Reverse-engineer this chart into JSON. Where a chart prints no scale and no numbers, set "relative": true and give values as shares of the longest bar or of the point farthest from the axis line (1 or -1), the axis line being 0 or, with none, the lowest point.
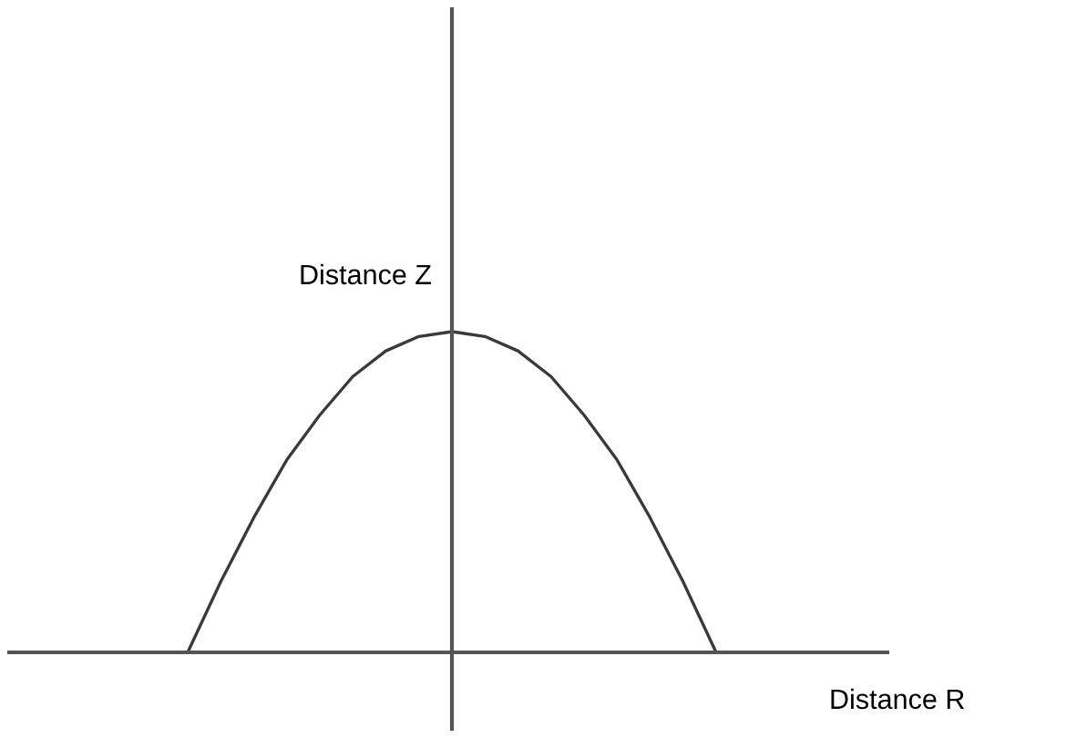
{
  "chart_data": {
    "type": "line",
    "relative": true,
    "xlabel": "Distance R",
    "ylabel": "Distance Z",
    "categories": [
      null,
      null,
      null,
      null,
      null,
      null,
      null,
      null,
      null,
      null,
      null,
      null,
      null,
      null,
      null,
      null,
      null
    ],
    "series": [
      {
        "color": "#3a3a3a",
        "values": [
          0,
          0.22,
          0.42,
          0.6,
          0.74,
          0.86,
          0.94,
          0.985,
          1,
          0.985,
          0.94,
          0.86,
          0.74,
          0.6,
          0.42,
          0.22,
          0
        ]
      }
    ],
    "marker": "none",
    "line_style": "solid",
    "grid": false,
    "legend": false
  }
}
